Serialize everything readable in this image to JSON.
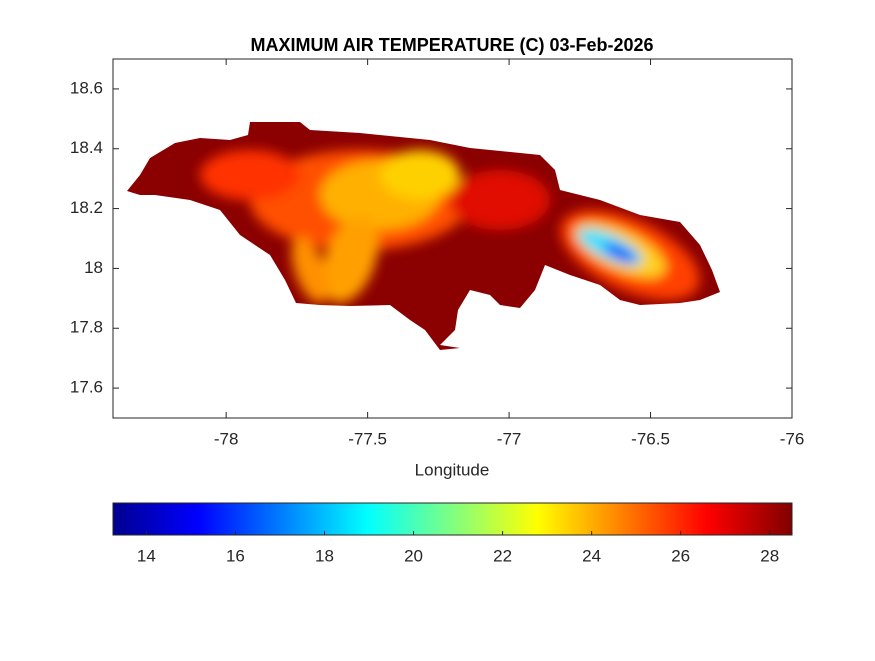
{
  "chart_data": {
    "type": "map",
    "title": "MAXIMUM AIR TEMPERATURE (C) 03-Feb-2026",
    "xlabel": "Longitude",
    "xlim": [
      -78.4,
      -76
    ],
    "xticks": [
      -78,
      -77.5,
      -77,
      -76.5,
      -76
    ],
    "ylim": [
      17.5,
      18.7
    ],
    "yticks": [
      17.6,
      17.8,
      18,
      18.2,
      18.4,
      18.6
    ],
    "colormap": "jet",
    "clim": [
      13.25,
      28.5
    ],
    "cticks": [
      14,
      16,
      18,
      20,
      22,
      24,
      26,
      28
    ]
  }
}
